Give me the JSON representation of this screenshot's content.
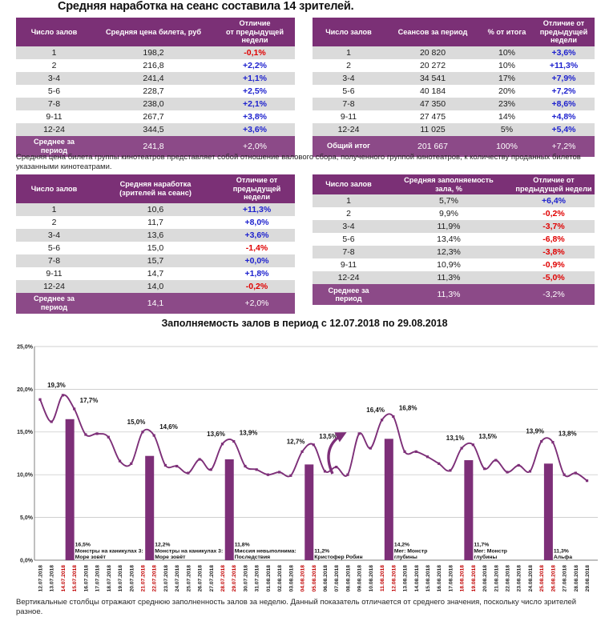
{
  "page": {
    "title": "Средняя наработка на сеанс составила 14 зрителей.",
    "note_between": "Средняя цена билета группы кинотеатров представляет собой отношение валового сбора, полученного группой кинотеатров, к количеству проданных билетов указанными кинотеатрами.",
    "footer_note": "Вертикальные столбцы отражают среднюю заполненность залов за неделю. Данный показатель отличается от среднего значения, поскольку число зрителей разное."
  },
  "colors": {
    "header_purple": "#7B3076",
    "footer_purple": "#8C4A88",
    "row_grey": "#DBDBDB",
    "delta_positive": "#1E22CE",
    "delta_negative": "#E00000",
    "weekend_red": "#C00000",
    "chart_purple": "#7D2F78",
    "gridline_grey": "#BFBFBF"
  },
  "tables": {
    "avg_price": {
      "headers": [
        "Число залов",
        "Средняя цена билета, руб",
        "Отличие\nот предыдущей недели"
      ],
      "rows": [
        [
          "1",
          "198,2",
          "-0,1%"
        ],
        [
          "2",
          "216,8",
          "+2,2%"
        ],
        [
          "3-4",
          "241,4",
          "+1,1%"
        ],
        [
          "5-6",
          "228,7",
          "+2,5%"
        ],
        [
          "7-8",
          "238,0",
          "+2,1%"
        ],
        [
          "9-11",
          "267,7",
          "+3,8%"
        ],
        [
          "12-24",
          "344,5",
          "+3,6%"
        ]
      ],
      "footer": [
        "Среднее за период",
        "241,8",
        "+2,0%"
      ]
    },
    "sessions": {
      "headers": [
        "Число залов",
        "Сеансов за период",
        "% от итога",
        "Отличие от\nпредыдущей недели"
      ],
      "rows": [
        [
          "1",
          "20 820",
          "10%",
          "+3,6%"
        ],
        [
          "2",
          "20 272",
          "10%",
          "+11,3%"
        ],
        [
          "3-4",
          "34 541",
          "17%",
          "+7,9%"
        ],
        [
          "5-6",
          "40 184",
          "20%",
          "+7,2%"
        ],
        [
          "7-8",
          "47 350",
          "23%",
          "+8,6%"
        ],
        [
          "9-11",
          "27 475",
          "14%",
          "+4,8%"
        ],
        [
          "12-24",
          "11 025",
          "5%",
          "+5,4%"
        ]
      ],
      "footer": [
        "Общий итог",
        "201 667",
        "100%",
        "+7,2%"
      ]
    },
    "avg_attendance": {
      "headers": [
        "Число залов",
        "Средняя наработка\n(зрителей на сеанс)",
        "Отличие от\nпредыдущей недели"
      ],
      "rows": [
        [
          "1",
          "10,6",
          "+11,3%"
        ],
        [
          "2",
          "11,7",
          "+8,0%"
        ],
        [
          "3-4",
          "13,6",
          "+3,6%"
        ],
        [
          "5-6",
          "15,0",
          "-1,4%"
        ],
        [
          "7-8",
          "15,7",
          "+0,0%"
        ],
        [
          "9-11",
          "14,7",
          "+1,8%"
        ],
        [
          "12-24",
          "14,0",
          "-0,2%"
        ]
      ],
      "footer": [
        "Среднее за период",
        "14,1",
        "+2,0%"
      ]
    },
    "occupancy": {
      "headers": [
        "Число залов",
        "Средняя заполняемость\nзала, %",
        "Отличие от\nпредыдущей недели"
      ],
      "rows": [
        [
          "1",
          "5,7%",
          "+6,4%"
        ],
        [
          "2",
          "9,9%",
          "-0,2%"
        ],
        [
          "3-4",
          "11,9%",
          "-3,7%"
        ],
        [
          "5-6",
          "13,4%",
          "-6,8%"
        ],
        [
          "7-8",
          "12,3%",
          "-3,8%"
        ],
        [
          "9-11",
          "10,9%",
          "-0,9%"
        ],
        [
          "12-24",
          "11,3%",
          "-5,0%"
        ]
      ],
      "footer": [
        "Среднее за период",
        "11,3%",
        "-3,2%"
      ]
    }
  },
  "chart_data": {
    "type": "line+bar",
    "title": "Заполняемость залов в период с 12.07.2018 по 29.08.2018",
    "ylim": [
      0,
      25
    ],
    "yticks": [
      "0,0%",
      "5,0%",
      "10,0%",
      "15,0%",
      "20,0%",
      "25,0%"
    ],
    "grid": "horizontal",
    "dates": [
      "12.07.2018",
      "13.07.2018",
      "14.07.2018",
      "15.07.2018",
      "16.07.2018",
      "17.07.2018",
      "18.07.2018",
      "19.07.2018",
      "20.07.2018",
      "21.07.2018",
      "22.07.2018",
      "23.07.2018",
      "24.07.2018",
      "25.07.2018",
      "26.07.2018",
      "27.07.2018",
      "28.07.2018",
      "29.07.2018",
      "30.07.2018",
      "31.07.2018",
      "01.08.2018",
      "02.08.2018",
      "03.08.2018",
      "04.08.2018",
      "05.08.2018",
      "06.08.2018",
      "07.08.2018",
      "08.08.2018",
      "09.08.2018",
      "10.08.2018",
      "11.08.2018",
      "12.08.2018",
      "13.08.2018",
      "14.08.2018",
      "15.08.2018",
      "16.08.2018",
      "17.08.2018",
      "18.08.2018",
      "19.08.2018",
      "20.08.2018",
      "21.08.2018",
      "22.08.2018",
      "23.08.2018",
      "24.08.2018",
      "25.08.2018",
      "26.08.2018",
      "27.08.2018",
      "28.08.2018",
      "29.08.2018"
    ],
    "line_values": [
      18.8,
      16.2,
      19.3,
      17.7,
      14.7,
      14.8,
      14.4,
      11.6,
      11.3,
      15.0,
      14.6,
      11.1,
      11.0,
      10.2,
      11.8,
      10.6,
      13.6,
      13.9,
      11.0,
      10.6,
      10.0,
      10.3,
      9.9,
      12.7,
      13.5,
      10.4,
      10.9,
      10.0,
      14.8,
      13.1,
      16.4,
      16.8,
      12.7,
      12.7,
      12.1,
      11.3,
      10.5,
      13.1,
      13.5,
      10.7,
      11.7,
      10.3,
      11.1,
      10.4,
      13.9,
      13.8,
      10.0,
      10.2,
      9.3
    ],
    "weekend_indices": [
      2,
      3,
      9,
      10,
      16,
      17,
      23,
      24,
      30,
      31,
      37,
      38,
      44,
      45
    ],
    "point_labels": {
      "2": "19,3%",
      "3": "17,7%",
      "9": "15,0%",
      "10": "14,6%",
      "16": "13,6%",
      "17": "13,9%",
      "23": "12,7%",
      "24": "13,5%",
      "30": "16,4%",
      "31": "16,8%",
      "37": "13,1%",
      "38": "13,5%",
      "44": "13,9%",
      "45": "13,8%"
    },
    "bars": [
      {
        "index": 3,
        "value": 16.5,
        "label": "16,5%",
        "film": [
          "Монстры на каникулах 3:",
          "Море зовёт"
        ]
      },
      {
        "index": 10,
        "value": 12.2,
        "label": "12,2%",
        "film": [
          "Монстры на каникулах 3:",
          "Море зовёт"
        ]
      },
      {
        "index": 17,
        "value": 11.8,
        "label": "11,8%",
        "film": [
          "Миссия невыполнима:",
          "Последствия"
        ]
      },
      {
        "index": 24,
        "value": 11.2,
        "label": "11,2%",
        "film": [
          "Кристофер Робин"
        ]
      },
      {
        "index": 31,
        "value": 14.2,
        "label": "14,2%",
        "film": [
          "Мег: Монстр",
          "глубины"
        ]
      },
      {
        "index": 38,
        "value": 11.7,
        "label": "11,7%",
        "film": [
          "Мег: Монстр",
          "глубины"
        ]
      },
      {
        "index": 45,
        "value": 11.3,
        "label": "11,3%",
        "film": [
          "Альфа"
        ]
      }
    ],
    "arrow_annotation": {
      "near_date": "09.08.2018"
    }
  }
}
